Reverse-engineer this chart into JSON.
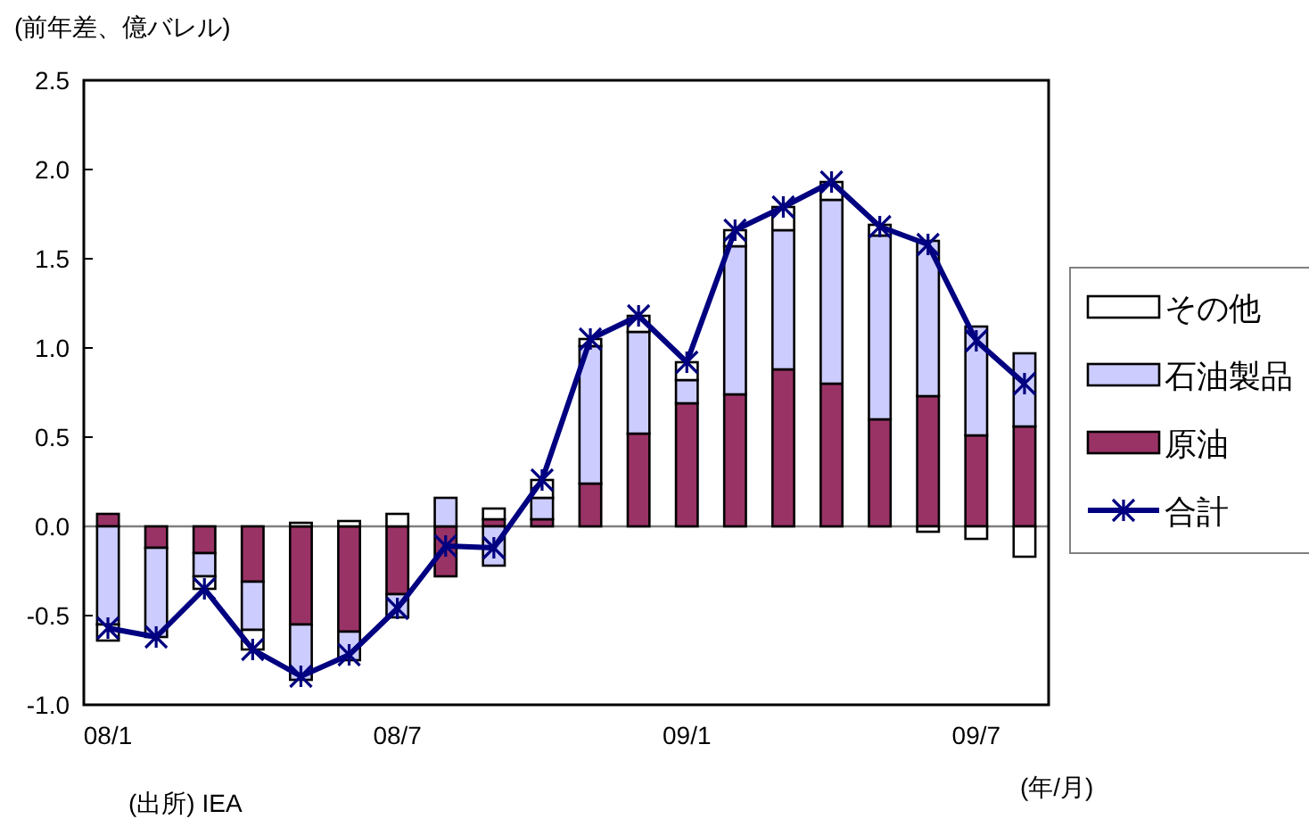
{
  "chart_data": {
    "type": "bar",
    "stacked": true,
    "ylabel": "(前年差、億バレル)",
    "xlabel": "(年/月)",
    "annotations": [
      "(出所) IEA"
    ],
    "categories": [
      "08/1",
      null,
      null,
      null,
      null,
      null,
      "08/7",
      null,
      null,
      null,
      null,
      null,
      "09/1",
      null,
      null,
      null,
      null,
      null,
      "09/7",
      null
    ],
    "ylim": [
      -1.0,
      2.5
    ],
    "yticks": [
      {
        "value": -1.0,
        "label": "-1.0"
      },
      -0.5,
      {
        "value": 0,
        "label": "0.0"
      },
      0.5,
      {
        "value": 1.0,
        "label": "1.0"
      },
      1.5,
      {
        "value": 2.0,
        "label": "2.0"
      },
      2.5
    ],
    "legend": "right",
    "series": [
      {
        "name": "原油",
        "color": "#993366",
        "values": [
          0.07,
          -0.12,
          -0.15,
          -0.31,
          -0.55,
          -0.59,
          -0.38,
          -0.28,
          0.04,
          0.04,
          0.24,
          0.52,
          0.69,
          0.74,
          0.88,
          0.8,
          0.6,
          0.73,
          0.51,
          0.56
        ]
      },
      {
        "name": "石油製品",
        "color": "#ccccff",
        "values": [
          -0.55,
          -0.5,
          -0.13,
          -0.27,
          -0.31,
          -0.16,
          -0.13,
          0.16,
          -0.22,
          0.12,
          0.77,
          0.57,
          0.13,
          0.83,
          0.78,
          1.03,
          1.03,
          0.87,
          0.61,
          0.41
        ]
      },
      {
        "name": "その他",
        "color": "#ffffff",
        "values": [
          -0.09,
          0,
          -0.07,
          -0.11,
          0.02,
          0.03,
          0.07,
          0,
          0.06,
          0.1,
          0.04,
          0.09,
          0.1,
          0.09,
          0.13,
          0.1,
          0.06,
          -0.03,
          -0.07,
          -0.17
        ]
      },
      {
        "name": "合計",
        "type": "line",
        "color": "#000080",
        "marker": "cross",
        "values": [
          -0.57,
          -0.62,
          -0.35,
          -0.69,
          -0.84,
          -0.72,
          -0.46,
          -0.11,
          -0.12,
          0.26,
          1.05,
          1.18,
          0.92,
          1.66,
          1.79,
          1.93,
          1.68,
          1.58,
          1.04,
          0.8
        ]
      }
    ]
  }
}
